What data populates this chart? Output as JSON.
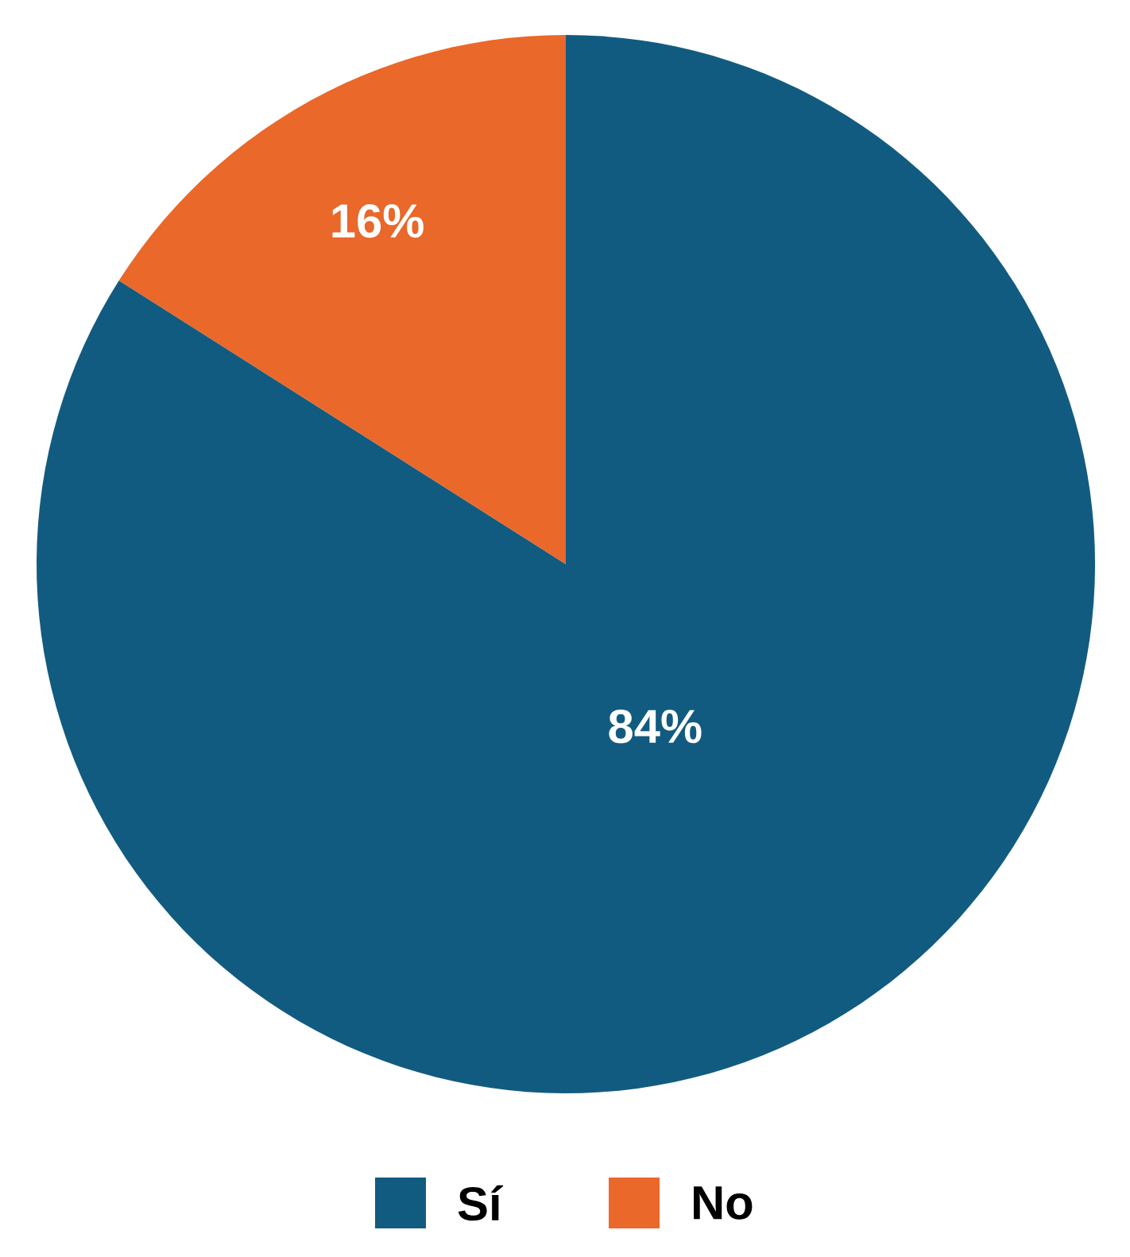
{
  "chart_data": {
    "type": "pie",
    "categories": [
      "Sí",
      "No"
    ],
    "values": [
      84,
      16
    ],
    "colors": [
      "#125b80",
      "#e9682a"
    ],
    "value_labels": [
      "84%",
      "16%"
    ],
    "legend": "bottom"
  }
}
